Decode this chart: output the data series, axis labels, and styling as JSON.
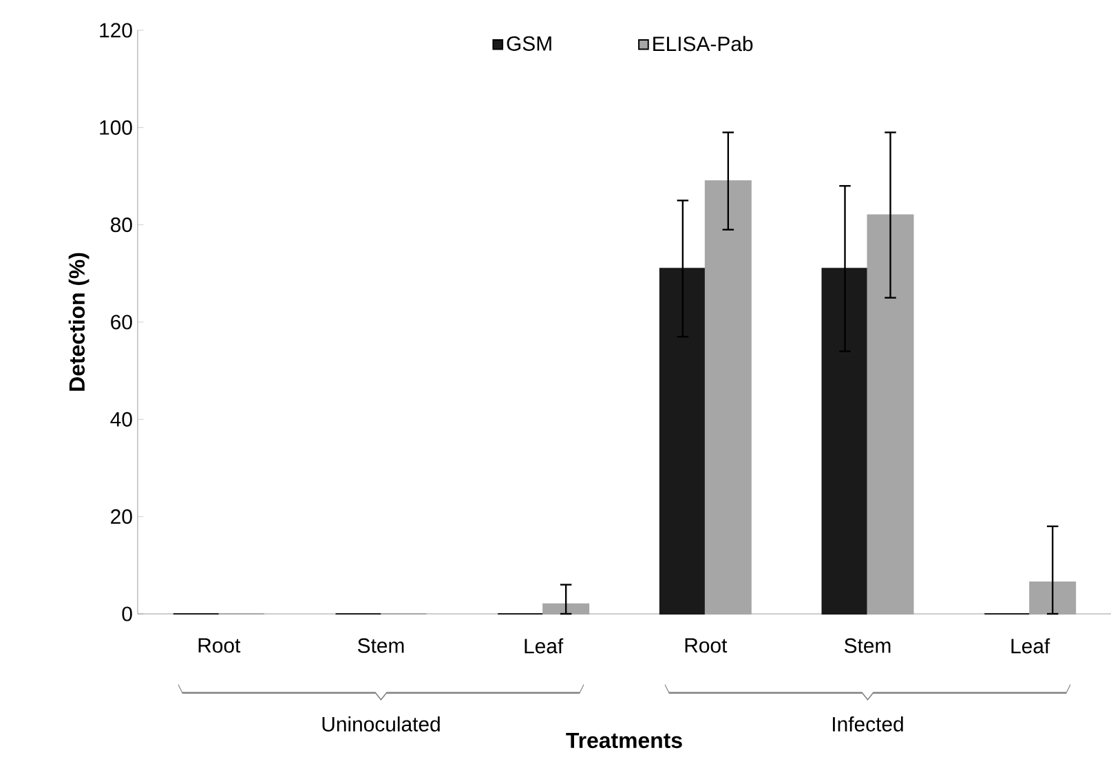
{
  "chart_data": {
    "type": "bar",
    "xlabel": "Treatments",
    "ylabel": "Detection (%)",
    "categories": [
      "Root",
      "Stem",
      "Leaf",
      "Root",
      "Stem",
      "Leaf"
    ],
    "series": [
      {
        "name": "GSM",
        "color": "#1a1a1a",
        "values": [
          0,
          0,
          0,
          71,
          71,
          0
        ],
        "errors": [
          null,
          null,
          null,
          14,
          17,
          null
        ]
      },
      {
        "name": "ELISA-Pab",
        "color": "#a6a6a6",
        "values": [
          0,
          0,
          2,
          89,
          82,
          6.5
        ],
        "errors": [
          null,
          null,
          [
            0,
            6
          ],
          10,
          17,
          [
            0,
            18
          ]
        ]
      }
    ],
    "ylim": [
      0,
      120
    ],
    "yticks": [
      0,
      20,
      40,
      60,
      80,
      100,
      120
    ],
    "grid": false,
    "legend": "top",
    "annotations": [
      "Uninoculated",
      "Infected"
    ]
  }
}
